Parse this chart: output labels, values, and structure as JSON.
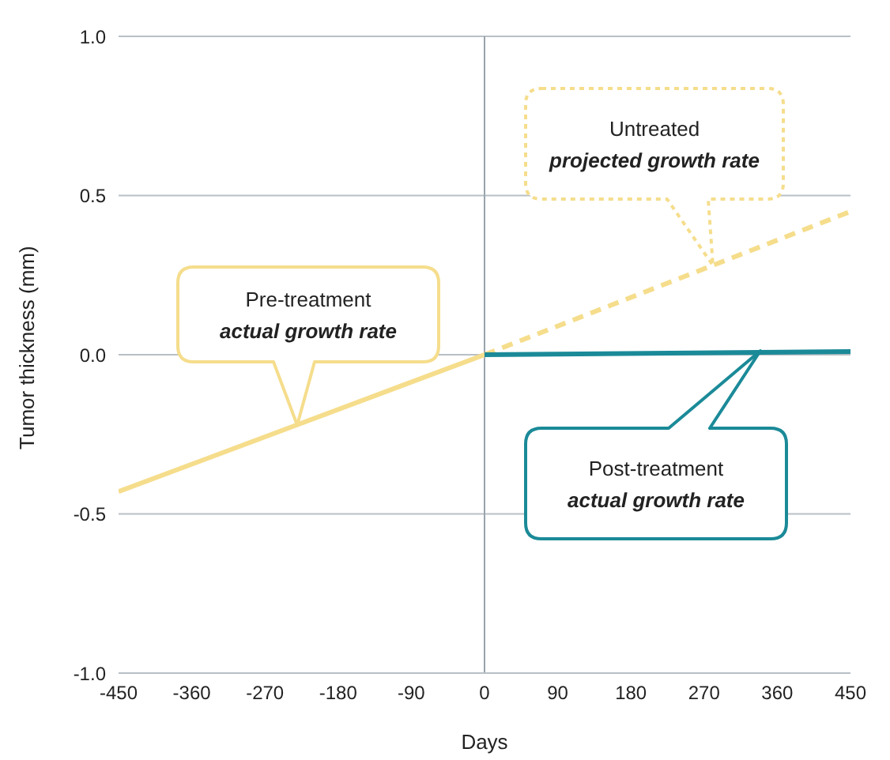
{
  "chart_data": {
    "type": "line",
    "xlabel": "Days",
    "ylabel": "Tumor thickness (mm)",
    "xlim": [
      -450,
      450
    ],
    "xticks": [
      -450,
      -360,
      -270,
      -180,
      -90,
      0,
      90,
      180,
      270,
      360,
      450
    ],
    "ylim": [
      -1,
      1
    ],
    "yticks": [
      {
        "value": 1,
        "label": "1.0"
      },
      {
        "value": 0.5,
        "label": "0.5"
      },
      {
        "value": 0,
        "label": "0.0"
      },
      {
        "value": -0.5,
        "label": "-0.5"
      },
      {
        "value": -1,
        "label": "-1.0"
      }
    ],
    "grid": "y",
    "marker": "none",
    "ref_lines": [
      {
        "axis": "x",
        "value": 0,
        "color": "#9aa5ad"
      }
    ],
    "series": [
      {
        "x": [
          -450,
          0
        ],
        "values": [
          -0.43,
          0
        ],
        "color": "#f5dd8c",
        "line_style": "solid"
      },
      {
        "x": [
          0,
          450
        ],
        "values": [
          0,
          0.45
        ],
        "color": "#f5dd8c",
        "line_style": "dashed"
      },
      {
        "x": [
          0,
          450
        ],
        "values": [
          0,
          0.01
        ],
        "color": "#1b8a98",
        "line_style": "solid"
      }
    ],
    "annotations": [
      "Pre-treatment\nactual growth rate",
      "Untreated\nprojected growth rate",
      "Post-treatment\nactual growth rate"
    ]
  }
}
